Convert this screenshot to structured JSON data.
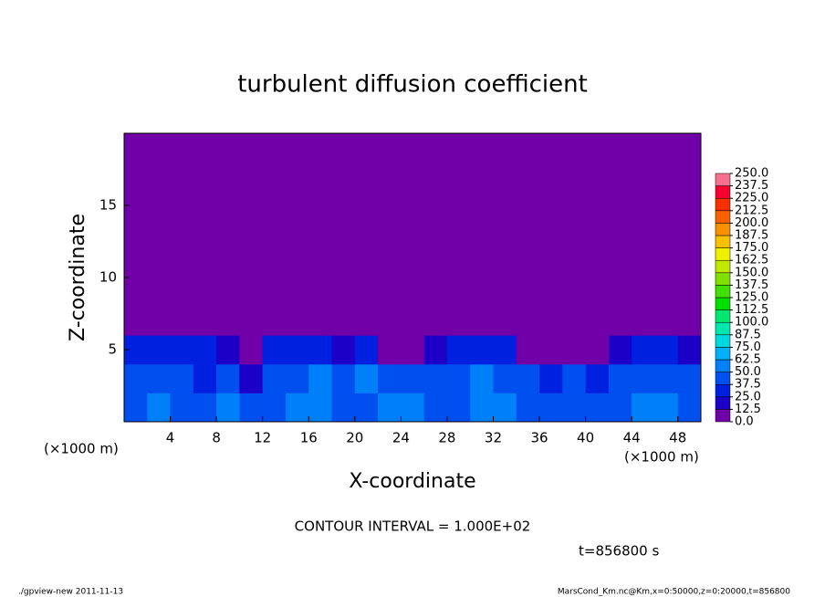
{
  "chart_data": {
    "type": "heatmap",
    "title": "turbulent diffusion coefficient",
    "x_label": "X-coordinate",
    "y_label": "Z-coordinate",
    "x_unit": "(×1000 m)",
    "y_unit": "(×1000 m)",
    "contour_note": "CONTOUR INTERVAL = 1.000E+02",
    "time_note": "t=856800 s",
    "footer_left": "./gpview-new  2011-11-13",
    "footer_right": "MarsCond_Km.nc@Km,x=0:50000,z=0:20000,t=856800",
    "xlim": [
      0,
      50
    ],
    "ylim": [
      0,
      20
    ],
    "xticks": [
      4,
      8,
      12,
      16,
      20,
      24,
      28,
      32,
      36,
      40,
      44,
      48
    ],
    "yticks": [
      5,
      10,
      15
    ],
    "x_bins": [
      0,
      2,
      4,
      6,
      8,
      10,
      12,
      14,
      16,
      18,
      20,
      22,
      24,
      26,
      28,
      30,
      32,
      34,
      36,
      38,
      40,
      42,
      44,
      46,
      48,
      50
    ],
    "z_bins": [
      0,
      2,
      4,
      6,
      20
    ],
    "values": [
      [
        45,
        50,
        45,
        40,
        50,
        40,
        45,
        50,
        60,
        45,
        45,
        60,
        55,
        45,
        40,
        50,
        55,
        45,
        40,
        45,
        40,
        45,
        50,
        60,
        45
      ],
      [
        40,
        45,
        40,
        35,
        45,
        20,
        40,
        45,
        50,
        40,
        50,
        45,
        40,
        40,
        45,
        50,
        45,
        45,
        35,
        40,
        35,
        40,
        45,
        45,
        40
      ],
      [
        25,
        30,
        30,
        25,
        15,
        5,
        25,
        30,
        25,
        20,
        30,
        10,
        5,
        20,
        25,
        30,
        25,
        10,
        5,
        10,
        5,
        20,
        25,
        25,
        20
      ],
      [
        0,
        0,
        0,
        0,
        0,
        0,
        0,
        0,
        0,
        0,
        0,
        0,
        0,
        0,
        0,
        0,
        0,
        0,
        0,
        0,
        0,
        0,
        0,
        0,
        0
      ]
    ],
    "levels": [
      {
        "value": 0,
        "label": "0.0"
      },
      {
        "value": 12.5,
        "label": "12.5"
      },
      {
        "value": 25,
        "label": "25.0"
      },
      {
        "value": 37.5,
        "label": "37.5"
      },
      {
        "value": 50,
        "label": "50.0"
      },
      {
        "value": 62.5,
        "label": "62.5"
      },
      {
        "value": 75,
        "label": "75.0"
      },
      {
        "value": 87.5,
        "label": "87.5"
      },
      {
        "value": 100,
        "label": "100.0"
      },
      {
        "value": 112.5,
        "label": "112.5"
      },
      {
        "value": 125,
        "label": "125.0"
      },
      {
        "value": 137.5,
        "label": "137.5"
      },
      {
        "value": 150,
        "label": "150.0"
      },
      {
        "value": 162.5,
        "label": "162.5"
      },
      {
        "value": 175,
        "label": "175.0"
      },
      {
        "value": 187.5,
        "label": "187.5"
      },
      {
        "value": 200,
        "label": "200.0"
      },
      {
        "value": 212.5,
        "label": "212.5"
      },
      {
        "value": 225,
        "label": "225.0"
      },
      {
        "value": 237.5,
        "label": "237.5"
      },
      {
        "value": 250,
        "label": "250.0"
      }
    ],
    "colors": [
      "#7000a8",
      "#1c00c8",
      "#0020e0",
      "#0050f0",
      "#0080f8",
      "#00b0f8",
      "#00d8e0",
      "#00e8b0",
      "#00e870",
      "#00e000",
      "#40e000",
      "#80e000",
      "#c0e800",
      "#f0f000",
      "#f8c000",
      "#f89000",
      "#f86000",
      "#f83000",
      "#f80030",
      "#f87090"
    ]
  }
}
